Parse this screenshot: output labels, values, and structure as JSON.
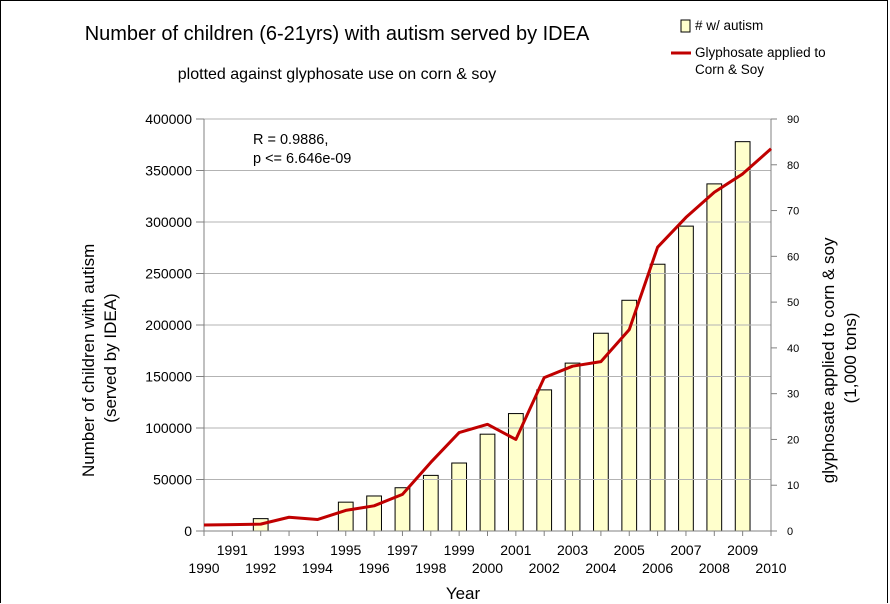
{
  "chart_data": {
    "type": "bar",
    "title": "Number of children (6-21yrs) with autism served by IDEA",
    "subtitle": "plotted against glyphosate use on corn & soy",
    "xlabel": "Year",
    "ylabel_lines": [
      "Number of children with autism",
      "(served by IDEA)"
    ],
    "y2label_lines": [
      "glyphosate applied to corn & soy",
      "(1,000 tons)"
    ],
    "annotation_lines": [
      "R = 0.9886,",
      "p <= 6.646e-09"
    ],
    "ylim": [
      0,
      400000
    ],
    "y_ticks": [
      0,
      50000,
      100000,
      150000,
      200000,
      250000,
      300000,
      350000,
      400000
    ],
    "y2lim": [
      0,
      90
    ],
    "y2_ticks": [
      0,
      10,
      20,
      30,
      40,
      50,
      60,
      70,
      80,
      90
    ],
    "xlim": [
      1990,
      2010
    ],
    "x_ticks": [
      1990,
      1991,
      1992,
      1993,
      1994,
      1995,
      1996,
      1997,
      1998,
      1999,
      2000,
      2001,
      2002,
      2003,
      2004,
      2005,
      2006,
      2007,
      2008,
      2009,
      2010
    ],
    "legend_position": "top-right",
    "series": [
      {
        "name": "# w/ autism",
        "type": "bar",
        "axis": "left",
        "color": "#ffffcc",
        "x": [
          1992,
          1995,
          1996,
          1997,
          1998,
          1999,
          2000,
          2001,
          2002,
          2003,
          2004,
          2005,
          2006,
          2007,
          2008,
          2009
        ],
        "values": [
          12000,
          28000,
          34000,
          42000,
          54000,
          66000,
          94000,
          114000,
          137000,
          163000,
          192000,
          224000,
          259000,
          296000,
          337000,
          378000
        ]
      },
      {
        "name": "Glyphosate applied to Corn & Soy",
        "type": "line",
        "axis": "right",
        "color": "#c00000",
        "x": [
          1990,
          1991,
          1992,
          1993,
          1994,
          1995,
          1996,
          1997,
          1998,
          1999,
          2000,
          2001,
          2002,
          2003,
          2004,
          2005,
          2006,
          2007,
          2008,
          2009,
          2010
        ],
        "values": [
          1.3,
          1.4,
          1.5,
          3,
          2.5,
          4.5,
          5.5,
          8,
          15,
          21.5,
          23.3,
          20,
          33.5,
          36,
          37,
          44,
          62,
          68.5,
          74,
          78,
          83.5
        ]
      }
    ]
  }
}
